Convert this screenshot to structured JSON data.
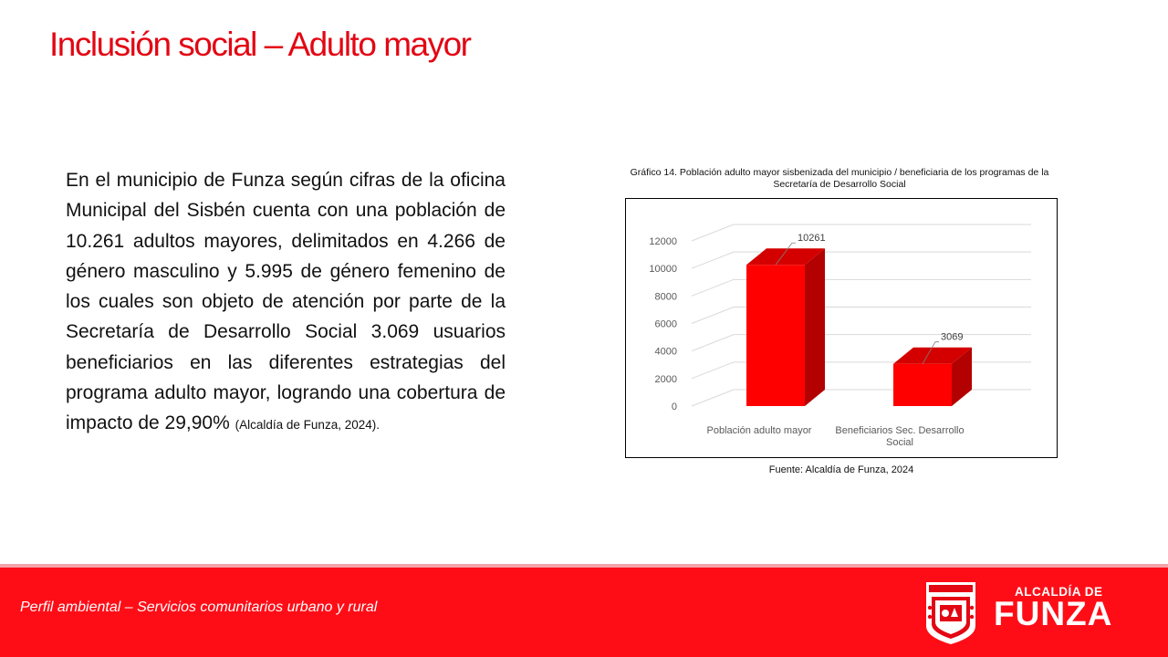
{
  "page": {
    "title": "Inclusión social – Adulto mayor",
    "title_color": "#e30613"
  },
  "body": {
    "text": "En el municipio de Funza según cifras de la oficina Municipal del Sisbén cuenta con una población de 10.261 adultos mayores, delimitados en 4.266 de género masculino y 5.995 de género femenino de los cuales son objeto de atención por parte de la Secretaría de Desarrollo Social 3.069 usuarios beneficiarios en las diferentes estrategias del programa adulto mayor, logrando una cobertura de impacto de 29,90%",
    "citation": "(Alcaldía de Funza, 2024)."
  },
  "chart": {
    "caption": "Gráfico 14. Población adulto mayor sisbenizada del municipio / beneficiaria de los programas de la Secretaría de Desarrollo Social",
    "source": "Fuente: Alcaldía de Funza, 2024"
  },
  "chart_data": {
    "type": "bar",
    "style": "3d-column",
    "categories": [
      "Población adulto mayor",
      "Beneficiarios Sec. Desarrollo Social"
    ],
    "category_label_lines": [
      [
        "Población adulto mayor"
      ],
      [
        "Beneficiarios Sec. Desarrollo",
        "Social"
      ]
    ],
    "values": [
      10261,
      3069
    ],
    "data_labels": [
      "10261",
      "3069"
    ],
    "ylim": [
      0,
      12000
    ],
    "yticks": [
      0,
      2000,
      4000,
      6000,
      8000,
      10000,
      12000
    ],
    "grid": true,
    "legend": "none",
    "bar_color": "#ff0000"
  },
  "footer": {
    "text": "Perfil ambiental – Servicios comunitarios urbano y rural",
    "background": "#ff0d17",
    "brand_top": "ALCALDÍA DE",
    "brand_main": "FUNZA"
  }
}
